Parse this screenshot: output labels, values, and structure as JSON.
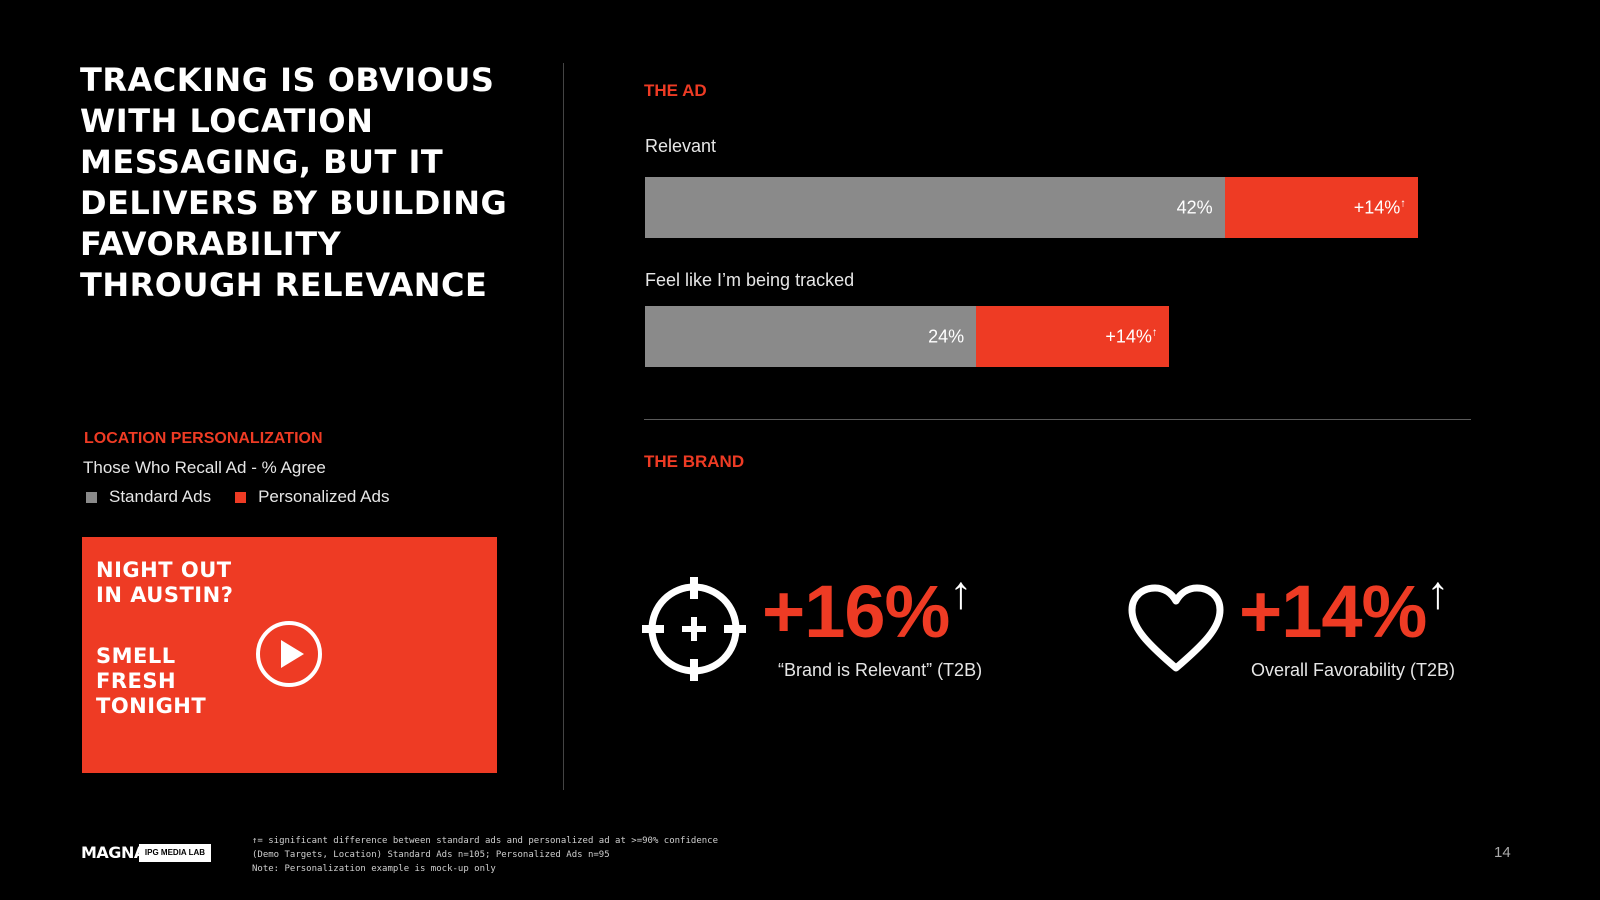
{
  "headline": [
    "TRACKING IS OBVIOUS",
    "WITH LOCATION",
    "MESSAGING, BUT IT",
    "DELIVERS BY BUILDING",
    "FAVORABILITY",
    "THROUGH RELEVANCE"
  ],
  "legend": {
    "title": "LOCATION PERSONALIZATION",
    "subtitle": "Those Who Recall Ad - % Agree",
    "standard": "Standard Ads",
    "personalized": "Personalized Ads"
  },
  "ad_mockup": {
    "line1": "NIGHT OUT",
    "line2": "IN AUSTIN?",
    "line3": "SMELL",
    "line4": "FRESH",
    "line5": "TONIGHT"
  },
  "sections": {
    "ad": "THE AD",
    "brand": "THE BRAND"
  },
  "chart_data": {
    "type": "bar",
    "orientation": "horizontal",
    "stacked": true,
    "categories": [
      "Relevant",
      "Feel like I’m being tracked"
    ],
    "series": [
      {
        "name": "Standard Ads",
        "values": [
          42,
          24
        ],
        "labels": [
          "42%",
          "24%"
        ],
        "color": "#8a8a8a"
      },
      {
        "name": "Personalized Ads",
        "values": [
          14,
          14
        ],
        "labels": [
          "+14%",
          "+14%"
        ],
        "color": "#ee3b24"
      }
    ],
    "significance_marker": "↑"
  },
  "brand_stats": [
    {
      "value": "+16%",
      "arrow": "↑",
      "caption": "“Brand is Relevant” (T2B)",
      "icon": "target-icon"
    },
    {
      "value": "+14%",
      "arrow": "↑",
      "caption": "Overall Favorability (T2B)",
      "icon": "heart-icon"
    }
  ],
  "footer": {
    "logo": "MAGNA",
    "badge": "IPG MEDIA LAB",
    "notes": [
      "↑= significant difference between standard ads and personalized ad at >=90% confidence",
      "(Demo Targets, Location) Standard Ads n=105; Personalized Ads n=95",
      "Note: Personalization example is mock-up only"
    ],
    "page": "14"
  },
  "colors": {
    "accent": "#ee3b24",
    "standard": "#8a8a8a",
    "background": "#000000"
  }
}
